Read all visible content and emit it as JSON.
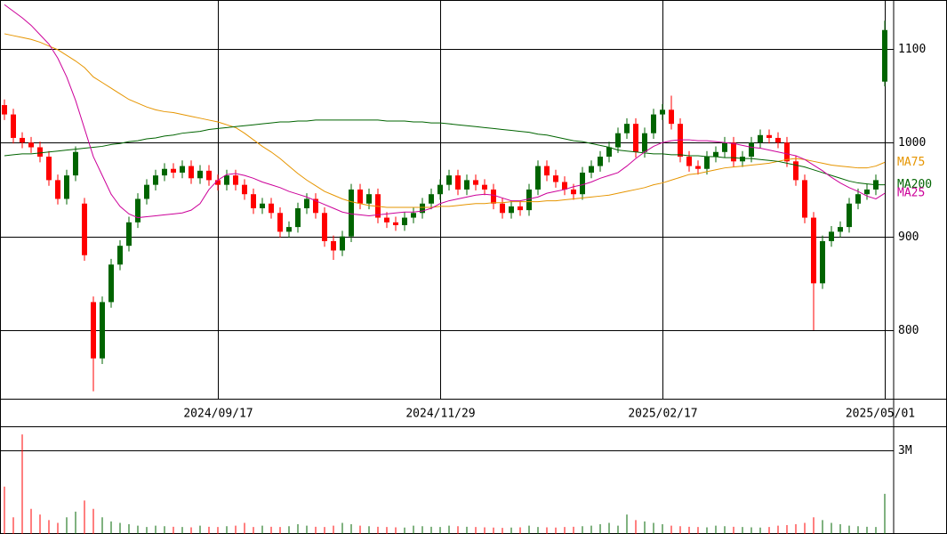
{
  "chart_data": {
    "type": "candlestick",
    "categories": [
      null,
      null,
      null,
      null,
      null,
      null,
      null,
      null,
      null,
      null,
      null,
      null,
      null,
      null,
      null,
      null,
      null,
      null,
      null,
      null,
      null,
      null,
      null,
      null,
      "2024/09/17",
      null,
      null,
      null,
      null,
      null,
      null,
      null,
      null,
      null,
      null,
      null,
      null,
      null,
      null,
      null,
      null,
      null,
      null,
      null,
      null,
      null,
      null,
      null,
      null,
      "2024/11/29",
      null,
      null,
      null,
      null,
      null,
      null,
      null,
      null,
      null,
      null,
      null,
      null,
      null,
      null,
      null,
      null,
      null,
      null,
      null,
      null,
      null,
      null,
      null,
      null,
      "2025/02/17",
      null,
      null,
      null,
      null,
      null,
      null,
      null,
      null,
      null,
      null,
      null,
      null,
      null,
      null,
      null,
      null,
      null,
      null,
      null,
      null,
      null,
      null,
      null,
      null,
      "2025/05/01"
    ],
    "open": [
      1040,
      1030,
      1005,
      1000,
      995,
      985,
      960,
      940,
      965,
      935,
      830,
      770,
      830,
      870,
      890,
      915,
      940,
      955,
      965,
      972,
      968,
      975,
      962,
      970,
      960,
      955,
      965,
      955,
      945,
      930,
      935,
      925,
      905,
      910,
      930,
      940,
      925,
      895,
      885,
      900,
      950,
      935,
      945,
      920,
      915,
      912,
      920,
      925,
      935,
      945,
      955,
      965,
      950,
      960,
      955,
      950,
      935,
      925,
      932,
      928,
      950,
      975,
      965,
      958,
      950,
      945,
      968,
      975,
      985,
      995,
      1010,
      1020,
      990,
      1010,
      1030,
      1035,
      1020,
      985,
      975,
      972,
      985,
      990,
      1000,
      980,
      985,
      1000,
      1008,
      1005,
      1000,
      980,
      960,
      920,
      850,
      895,
      905,
      910,
      935,
      945,
      950,
      1065
    ],
    "high": [
      1046,
      1036,
      1011,
      1006,
      1001,
      991,
      966,
      971,
      996,
      941,
      836,
      836,
      876,
      896,
      921,
      946,
      961,
      971,
      978,
      978,
      981,
      981,
      976,
      976,
      966,
      971,
      971,
      961,
      951,
      941,
      941,
      931,
      916,
      936,
      946,
      946,
      931,
      901,
      906,
      956,
      956,
      951,
      951,
      926,
      921,
      926,
      931,
      941,
      951,
      961,
      971,
      971,
      966,
      966,
      961,
      956,
      941,
      938,
      938,
      956,
      981,
      981,
      971,
      964,
      956,
      974,
      981,
      991,
      1001,
      1016,
      1026,
      1026,
      1016,
      1036,
      1041,
      1050,
      1026,
      991,
      981,
      991,
      996,
      1006,
      1006,
      991,
      1006,
      1014,
      1014,
      1011,
      1006,
      986,
      966,
      926,
      901,
      911,
      916,
      941,
      951,
      956,
      966,
      1130
    ],
    "low": [
      1024,
      999,
      994,
      989,
      979,
      954,
      934,
      934,
      959,
      874,
      735,
      764,
      824,
      864,
      884,
      909,
      934,
      949,
      959,
      962,
      962,
      956,
      956,
      954,
      949,
      949,
      949,
      939,
      924,
      924,
      919,
      899,
      899,
      904,
      924,
      919,
      889,
      875,
      879,
      894,
      929,
      929,
      914,
      909,
      906,
      906,
      914,
      919,
      929,
      939,
      949,
      944,
      944,
      949,
      944,
      929,
      919,
      919,
      922,
      922,
      944,
      959,
      952,
      944,
      939,
      939,
      962,
      969,
      979,
      989,
      1004,
      984,
      984,
      1004,
      1024,
      1014,
      979,
      969,
      966,
      966,
      979,
      984,
      974,
      974,
      979,
      994,
      999,
      994,
      974,
      954,
      914,
      800,
      844,
      889,
      899,
      904,
      929,
      939,
      944,
      1060
    ],
    "close": [
      1030,
      1005,
      1000,
      995,
      985,
      960,
      940,
      965,
      990,
      880,
      770,
      830,
      870,
      890,
      915,
      940,
      955,
      965,
      972,
      968,
      975,
      962,
      970,
      960,
      955,
      965,
      955,
      945,
      930,
      935,
      925,
      905,
      910,
      930,
      940,
      925,
      895,
      885,
      900,
      950,
      935,
      945,
      920,
      915,
      912,
      920,
      925,
      935,
      945,
      955,
      965,
      950,
      960,
      955,
      950,
      935,
      925,
      932,
      928,
      950,
      975,
      965,
      958,
      950,
      945,
      968,
      975,
      985,
      995,
      1010,
      1020,
      990,
      1010,
      1030,
      1035,
      1020,
      985,
      975,
      972,
      985,
      990,
      1000,
      980,
      985,
      1000,
      1008,
      1005,
      1000,
      980,
      960,
      920,
      850,
      895,
      905,
      910,
      935,
      945,
      950,
      960,
      1120
    ],
    "up_color": "#006400",
    "down_color": "#ff0000",
    "series": [
      {
        "name": "MA75",
        "color": "#e69500",
        "values": [
          1116,
          1114,
          1112,
          1110,
          1107,
          1103,
          1099,
          1093,
          1087,
          1080,
          1070,
          1064,
          1058,
          1052,
          1046,
          1042,
          1038,
          1035,
          1033,
          1032,
          1030,
          1028,
          1026,
          1024,
          1022,
          1019,
          1016,
          1010,
          1003,
          996,
          990,
          983,
          975,
          967,
          960,
          954,
          948,
          944,
          940,
          937,
          935,
          933,
          932,
          931,
          931,
          931,
          931,
          931,
          931,
          932,
          932,
          933,
          934,
          935,
          935,
          936,
          936,
          937,
          937,
          937,
          937,
          938,
          938,
          939,
          940,
          941,
          942,
          943,
          944,
          946,
          948,
          950,
          952,
          955,
          957,
          960,
          963,
          966,
          967,
          969,
          971,
          973,
          974,
          975,
          976,
          977,
          978,
          980,
          982,
          983,
          982,
          980,
          978,
          976,
          975,
          974,
          973,
          973,
          975,
          979
        ]
      },
      {
        "name": "MA200",
        "color": "#006400",
        "values": [
          986,
          987,
          988,
          988,
          989,
          990,
          991,
          992,
          993,
          994,
          995,
          996,
          998,
          999,
          1001,
          1002,
          1004,
          1005,
          1007,
          1008,
          1010,
          1011,
          1012,
          1014,
          1015,
          1016,
          1017,
          1018,
          1019,
          1020,
          1021,
          1022,
          1022,
          1023,
          1023,
          1024,
          1024,
          1024,
          1024,
          1024,
          1024,
          1024,
          1024,
          1023,
          1023,
          1023,
          1022,
          1022,
          1021,
          1021,
          1020,
          1019,
          1018,
          1017,
          1016,
          1015,
          1014,
          1013,
          1012,
          1011,
          1009,
          1008,
          1006,
          1004,
          1002,
          1001,
          999,
          997,
          995,
          992,
          991,
          990,
          989,
          988,
          988,
          987,
          987,
          986,
          986,
          985,
          985,
          984,
          984,
          983,
          983,
          982,
          981,
          980,
          978,
          976,
          974,
          971,
          968,
          965,
          962,
          959,
          957,
          956,
          955,
          955
        ]
      },
      {
        "name": "MA25",
        "color": "#cc0099",
        "values": [
          1147,
          1140,
          1133,
          1125,
          1115,
          1105,
          1090,
          1070,
          1045,
          1015,
          985,
          965,
          945,
          932,
          924,
          920,
          921,
          922,
          923,
          924,
          925,
          928,
          935,
          950,
          960,
          966,
          967,
          965,
          962,
          958,
          955,
          952,
          948,
          945,
          942,
          938,
          934,
          930,
          926,
          924,
          923,
          922,
          923,
          924,
          925,
          926,
          926,
          927,
          930,
          935,
          938,
          940,
          942,
          944,
          945,
          944,
          941,
          938,
          938,
          940,
          942,
          946,
          948,
          950,
          953,
          955,
          958,
          962,
          965,
          968,
          975,
          983,
          990,
          996,
          1000,
          1002,
          1003,
          1003,
          1002,
          1002,
          1001,
          1000,
          999,
          997,
          995,
          994,
          992,
          990,
          988,
          986,
          982,
          976,
          970,
          963,
          957,
          952,
          948,
          943,
          940,
          946
        ]
      }
    ],
    "ylim": [
      727,
      1152
    ],
    "yticks": [
      800,
      900,
      1000,
      1100
    ],
    "grid": true,
    "volume": {
      "values": [
        1700000,
        600000,
        3570000,
        900000,
        700000,
        500000,
        400000,
        600000,
        800000,
        1200000,
        900000,
        600000,
        450000,
        400000,
        350000,
        300000,
        250000,
        300000,
        280000,
        260000,
        250000,
        240000,
        300000,
        260000,
        250000,
        280000,
        300000,
        400000,
        250000,
        300000,
        260000,
        250000,
        280000,
        350000,
        300000,
        260000,
        250000,
        300000,
        400000,
        350000,
        300000,
        280000,
        260000,
        250000,
        240000,
        230000,
        300000,
        280000,
        260000,
        250000,
        300000,
        280000,
        260000,
        250000,
        240000,
        230000,
        220000,
        230000,
        240000,
        300000,
        250000,
        240000,
        230000,
        250000,
        260000,
        280000,
        300000,
        350000,
        400000,
        300000,
        700000,
        500000,
        450000,
        400000,
        350000,
        300000,
        280000,
        260000,
        250000,
        240000,
        300000,
        280000,
        260000,
        250000,
        240000,
        230000,
        250000,
        300000,
        320000,
        350000,
        400000,
        600000,
        500000,
        400000,
        350000,
        300000,
        280000,
        260000,
        250000,
        1440000
      ],
      "ylim": [
        0,
        3830000
      ],
      "yticks": [
        {
          "value": 3000000,
          "label": "3M"
        }
      ]
    }
  }
}
